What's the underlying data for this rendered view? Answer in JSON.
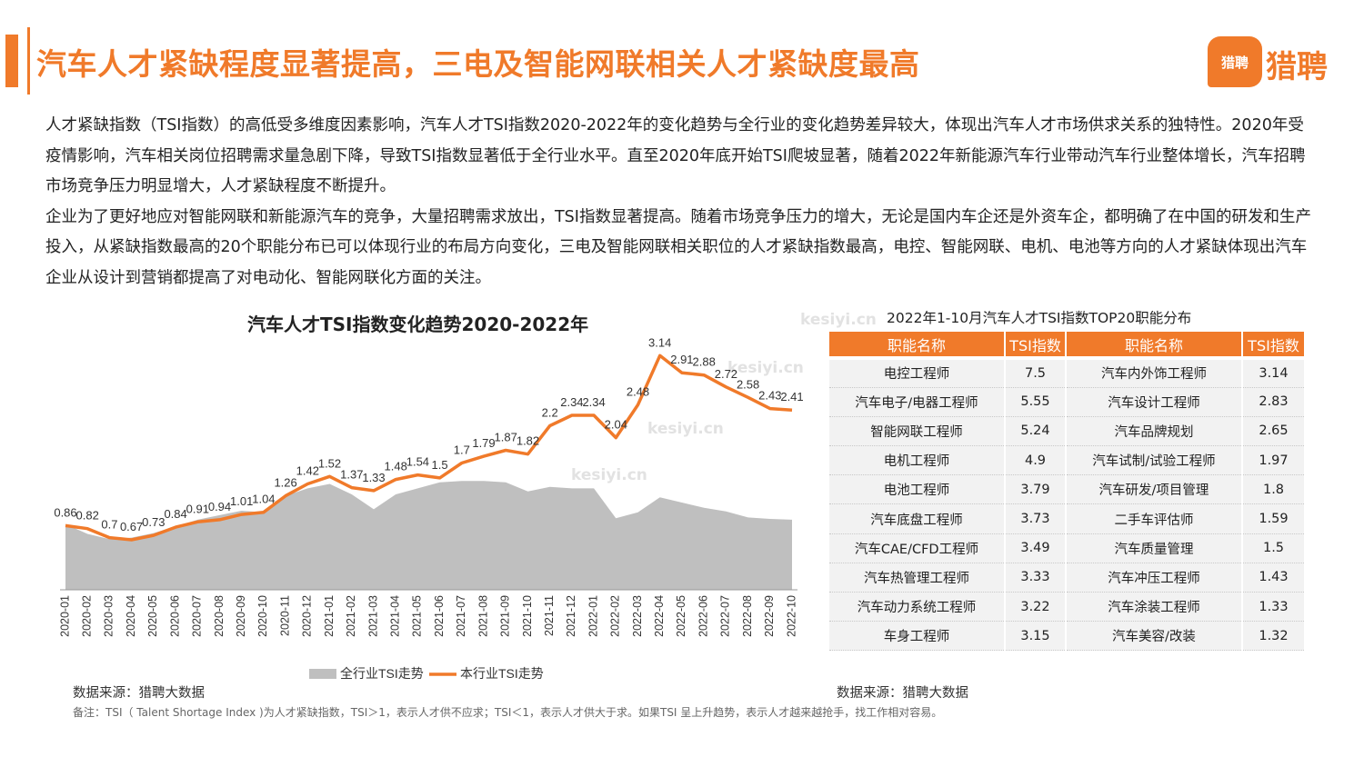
{
  "header": {
    "title": "汽车人才紧缺程度显著提高，三电及智能网联相关人才紧缺度最高",
    "logo_badge": "猎聘",
    "logo_text": "猎聘",
    "accent_color": "#f07a2a"
  },
  "description": [
    "人才紧缺指数（TSI指数）的高低受多维度因素影响，汽车人才TSI指数2020-2022年的变化趋势与全行业的变化趋势差异较大，体现出汽车人才市场供求关系的独特性。2020年受疫情影响，汽车相关岗位招聘需求量急剧下降，导致TSI指数显著低于全行业水平。直至2020年底开始TSI爬坡显著，随着2022年新能源汽车行业带动汽车行业整体增长，汽车招聘市场竞争压力明显增大，人才紧缺程度不断提升。",
    "企业为了更好地应对智能网联和新能源汽车的竞争，大量招聘需求放出，TSI指数显著提高。随着市场竞争压力的增大，无论是国内车企还是外资车企，都明确了在中国的研发和生产投入，从紧缺指数最高的20个职能分布已可以体现行业的布局方向变化，三电及智能网联相关职位的人才紧缺指数最高，电控、智能网联、电机、电池等方向的人才紧缺体现出汽车企业从设计到营销都提高了对电动化、智能网联化方面的关注。"
  ],
  "chart_data": [
    {
      "type": "line",
      "title": "汽车人才TSI指数变化趋势2020-2022年",
      "categories": [
        "2020-01",
        "2020-02",
        "2020-03",
        "2020-04",
        "2020-05",
        "2020-06",
        "2020-07",
        "2020-08",
        "2020-09",
        "2020-10",
        "2020-11",
        "2020-12",
        "2021-01",
        "2021-02",
        "2021-03",
        "2021-04",
        "2021-05",
        "2021-06",
        "2021-07",
        "2021-08",
        "2021-09",
        "2021-10",
        "2021-11",
        "2021-12",
        "2022-01",
        "2022-02",
        "2022-03",
        "2022-04",
        "2022-05",
        "2022-06",
        "2022-07",
        "2022-08",
        "2022-09",
        "2022-10"
      ],
      "series": [
        {
          "name": "全行业TSI走势",
          "style": "area",
          "color": "#bfbfbf",
          "values": [
            0.88,
            0.75,
            0.68,
            0.7,
            0.76,
            0.85,
            0.94,
            1.0,
            1.06,
            1.04,
            1.26,
            1.36,
            1.42,
            1.28,
            1.08,
            1.28,
            1.36,
            1.44,
            1.46,
            1.46,
            1.44,
            1.32,
            1.38,
            1.36,
            1.36,
            0.96,
            1.04,
            1.24,
            1.17,
            1.1,
            1.05,
            0.97,
            0.95,
            0.94
          ]
        },
        {
          "name": "本行业TSI走势",
          "style": "line",
          "color": "#f07a2a",
          "values": [
            0.86,
            0.82,
            0.7,
            0.67,
            0.73,
            0.84,
            0.91,
            0.94,
            1.01,
            1.04,
            1.26,
            1.42,
            1.52,
            1.37,
            1.33,
            1.48,
            1.54,
            1.5,
            1.7,
            1.79,
            1.87,
            1.82,
            2.2,
            2.34,
            2.34,
            2.04,
            2.48,
            3.14,
            2.91,
            2.88,
            2.72,
            2.58,
            2.43,
            2.41
          ]
        }
      ],
      "data_labels": [
        "0.86",
        "0.82",
        "0.7",
        "0.67",
        "0.73",
        "0.84",
        "0.91",
        "0.94",
        "1.01",
        "1.04",
        "1.26",
        "1.42",
        "1.52",
        "1.37",
        "1.33",
        "1.48",
        "1.54",
        "1.5",
        "1.7",
        "1.79",
        "1.87",
        "1.82",
        "2.2",
        "2.34",
        "2.34",
        "2.04",
        "2.48",
        "3.14",
        "2.91",
        "2.88",
        "2.72",
        "2.58",
        "2.43",
        "2.41"
      ],
      "ylim": [
        0,
        3.4
      ],
      "grid": false,
      "legend": "bottom"
    },
    {
      "type": "table",
      "title": "2022年1-10月汽车人才TSI指数TOP20职能分布",
      "columns": [
        "职能名称",
        "TSI指数",
        "职能名称",
        "TSI指数"
      ],
      "rows": [
        [
          "电控工程师",
          "7.5",
          "汽车内外饰工程师",
          "3.14"
        ],
        [
          "汽车电子/电器工程师",
          "5.55",
          "汽车设计工程师",
          "2.83"
        ],
        [
          "智能网联工程师",
          "5.24",
          "汽车品牌规划",
          "2.65"
        ],
        [
          "电机工程师",
          "4.9",
          "汽车试制/试验工程师",
          "1.97"
        ],
        [
          "电池工程师",
          "3.79",
          "汽车研发/项目管理",
          "1.8"
        ],
        [
          "汽车底盘工程师",
          "3.73",
          "二手车评估师",
          "1.59"
        ],
        [
          "汽车CAE/CFD工程师",
          "3.49",
          "汽车质量管理",
          "1.5"
        ],
        [
          "汽车热管理工程师",
          "3.33",
          "汽车冲压工程师",
          "1.43"
        ],
        [
          "汽车动力系统工程师",
          "3.22",
          "汽车涂装工程师",
          "1.33"
        ],
        [
          "车身工程师",
          "3.15",
          "汽车美容/改装",
          "1.32"
        ]
      ]
    }
  ],
  "footer": {
    "source_left": "数据来源：猎聘大数据",
    "source_right": "数据来源：猎聘大数据",
    "note": "备注：TSI（ Talent Shortage Index )为人才紧缺指数，TSI＞1，表示人才供不应求；TSI＜1，表示人才供大于求。如果TSI 呈上升趋势，表示人才越来越抢手，找工作相对容易。"
  },
  "watermarks": [
    "kesiyi.cn",
    "kesiyi.cn",
    "kesiyi.cn",
    "kesiyi.cn",
    "kesiyi.cn"
  ]
}
